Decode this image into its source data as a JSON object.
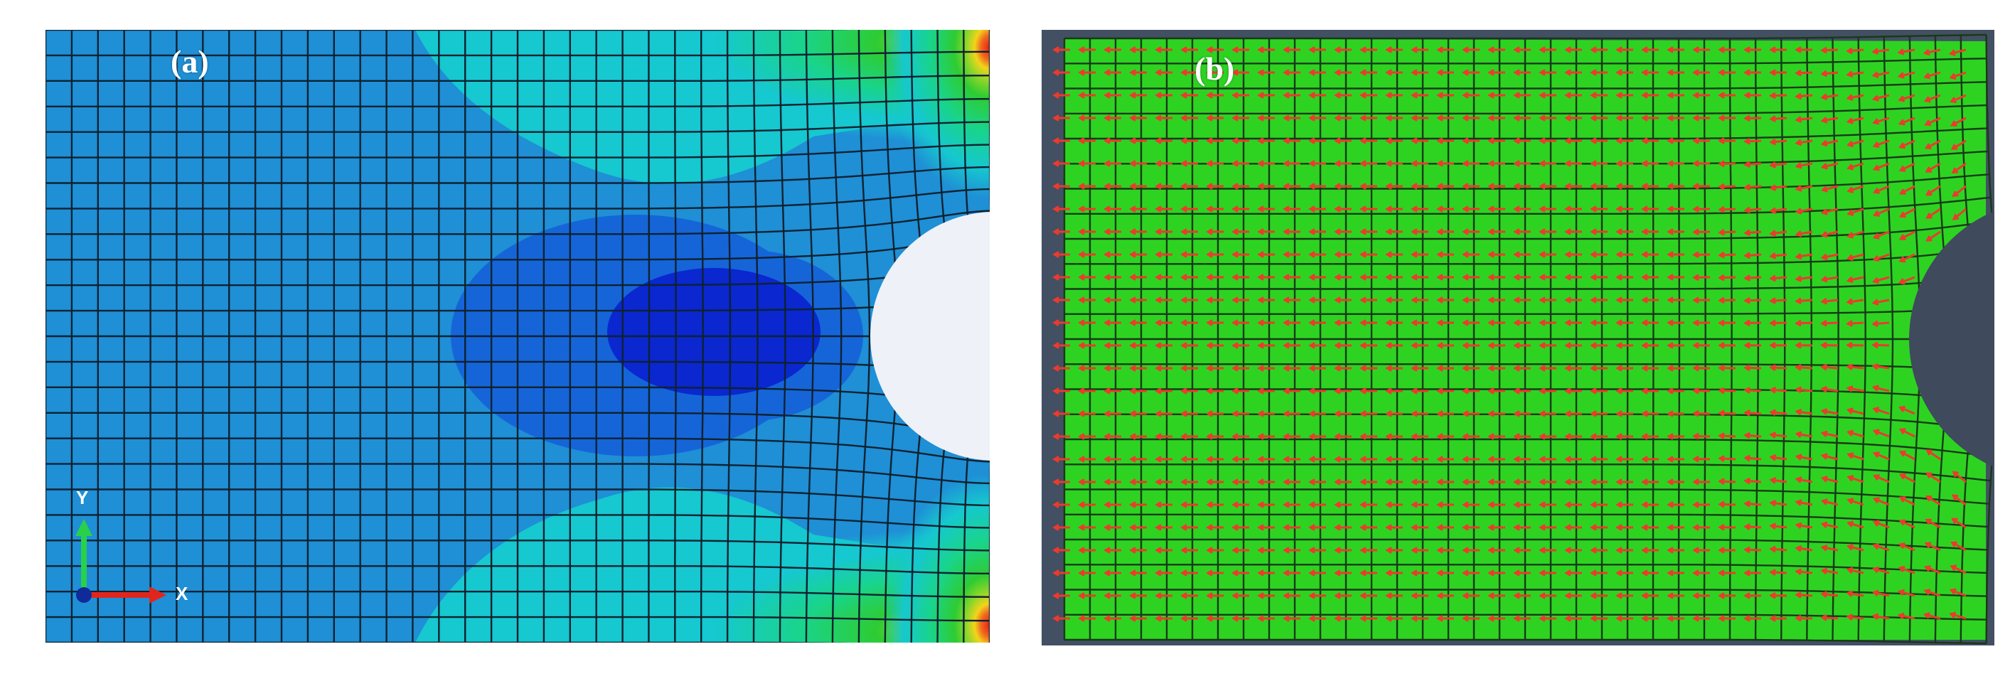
{
  "panels": [
    {
      "label": "(a)",
      "contour_colors": [
        "#1f8fd6",
        "#1565d8",
        "#0a27d0",
        "#16c8cf",
        "#19d48a",
        "#2ecc32",
        "#f2d41b",
        "#f0681e",
        "#e81f12"
      ]
    },
    {
      "label": "(b)",
      "fill_color": "#2ed322",
      "arrow_color": "#ec3a2e",
      "hole_color": "#3f4a5c"
    }
  ],
  "triad": {
    "y_label": "Y",
    "x_label": "X"
  }
}
